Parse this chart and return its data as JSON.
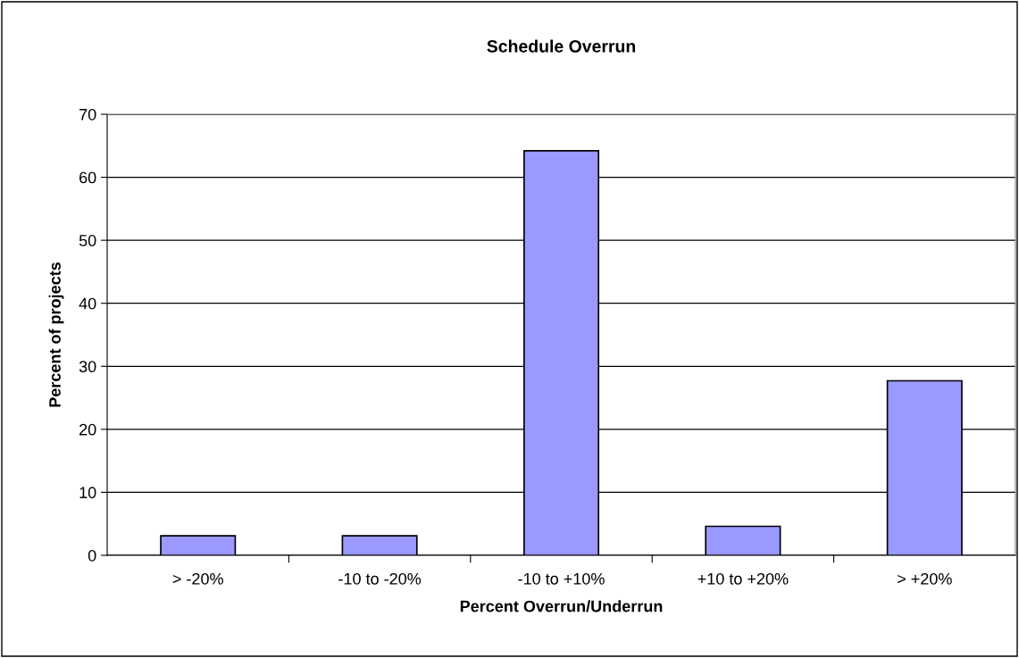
{
  "chart_data": {
    "type": "bar",
    "title": "Schedule Overrun",
    "xlabel": "Percent Overrun/Underrun",
    "ylabel": "Percent of projects",
    "categories": [
      "> -20%",
      "-10 to -20%",
      "-10 to +10%",
      "+10 to +20%",
      "> +20%"
    ],
    "values": [
      3.1,
      3.1,
      64.2,
      4.6,
      27.7
    ],
    "color": "#9999ff",
    "ylim": [
      0,
      70
    ],
    "yticks": [
      0,
      10,
      20,
      30,
      40,
      50,
      60,
      70
    ],
    "grid": "y",
    "legend": false
  }
}
